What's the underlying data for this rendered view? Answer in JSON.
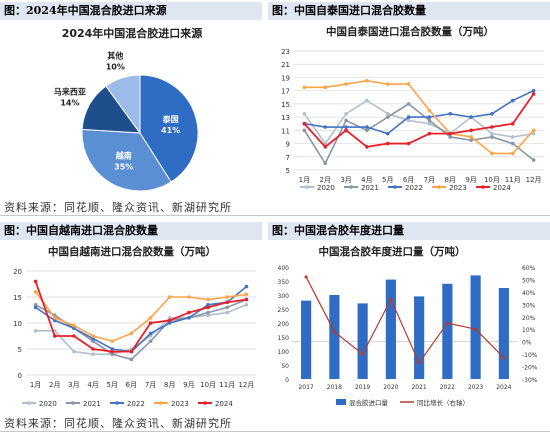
{
  "headers": {
    "h1": "图：2024年中国混合胶进口来源",
    "h2": "图：中国自泰国进口混合胶数量",
    "h3": "图：中国自越南进口混合胶数量",
    "h4": "图：中国混合胶年度进口量"
  },
  "source_text": "资料来源：同花顺、隆众资讯、新湖研究所",
  "colors": {
    "c2020": "#b4bfce",
    "c2021": "#8896a6",
    "c2022": "#4472c4",
    "c2023": "#ffa347",
    "c2024": "#e8202a",
    "bar": "#2f6dc4",
    "growth": "#b53a2e",
    "pie_thai": "#2f6dc4",
    "pie_viet": "#5b8fd4",
    "pie_mal": "#1f4e8c",
    "pie_other": "#9bbbe8"
  },
  "chart_data": [
    {
      "type": "pie",
      "title": "2024年中国混合胶进口来源",
      "slices": [
        {
          "label": "泰国",
          "value": 41,
          "display": "泰国\n41%"
        },
        {
          "label": "越南",
          "value": 35,
          "display": "越南\n35%"
        },
        {
          "label": "马来西亚",
          "value": 14,
          "display": "马来西亚\n14%"
        },
        {
          "label": "其他",
          "value": 10,
          "display": "其他\n10%"
        }
      ]
    },
    {
      "type": "line",
      "title": "中国自泰国进口混合胶数量（万吨）",
      "categories": [
        "1月",
        "2月",
        "3月",
        "4月",
        "5月",
        "6月",
        "7月",
        "8月",
        "9月",
        "10月",
        "11月",
        "12月"
      ],
      "ylim": [
        5,
        23
      ],
      "yticks": [
        5,
        7,
        9,
        11,
        13,
        15,
        17,
        19,
        21,
        23
      ],
      "series": [
        {
          "name": "2020",
          "values": [
            13.5,
            9,
            13.5,
            15.5,
            13.5,
            12.5,
            12,
            10.5,
            13,
            10.5,
            10,
            10.5
          ]
        },
        {
          "name": "2021",
          "values": [
            11,
            6,
            12.5,
            11,
            13,
            15,
            12.5,
            10,
            9.5,
            10,
            9,
            6.5
          ]
        },
        {
          "name": "2022",
          "values": [
            12,
            11.5,
            11.5,
            11.5,
            10.5,
            13,
            13,
            13.5,
            13,
            13.5,
            15.5,
            17
          ]
        },
        {
          "name": "2023",
          "values": [
            17.5,
            17.5,
            18,
            18.5,
            18,
            18,
            14,
            10.5,
            10,
            7.5,
            7.5,
            11
          ]
        },
        {
          "name": "2024",
          "values": [
            12,
            8.5,
            11,
            8.5,
            9,
            9,
            10.5,
            10.5,
            11,
            11.5,
            12,
            16.5
          ]
        }
      ]
    },
    {
      "type": "line",
      "title": "中国自越南进口混合胶数量（万吨）",
      "categories": [
        "1月",
        "2月",
        "3月",
        "4月",
        "5月",
        "6月",
        "7月",
        "8月",
        "9月",
        "10月",
        "11月",
        "12月"
      ],
      "ylim": [
        0,
        20
      ],
      "yticks": [
        0,
        5,
        10,
        15,
        20
      ],
      "series": [
        {
          "name": "2020",
          "values": [
            8.5,
            8.5,
            4.5,
            4,
            4,
            5,
            7.5,
            11,
            11,
            11.5,
            12,
            13.5
          ]
        },
        {
          "name": "2021",
          "values": [
            13.5,
            11.5,
            9,
            6.5,
            4,
            3,
            6.5,
            10.5,
            11,
            12,
            13,
            14.5
          ]
        },
        {
          "name": "2022",
          "values": [
            13,
            10.5,
            9,
            7,
            5,
            4.5,
            8,
            10,
            11,
            13.5,
            14,
            17
          ]
        },
        {
          "name": "2023",
          "values": [
            16,
            11,
            9.5,
            7.5,
            6.5,
            8,
            11,
            15,
            15,
            14.5,
            15,
            15.5
          ]
        },
        {
          "name": "2024",
          "values": [
            18,
            7.5,
            7.5,
            5,
            4.5,
            4.5,
            10,
            10.5,
            12,
            13,
            14,
            14.5
          ]
        }
      ]
    },
    {
      "type": "bar",
      "title": "中国混合胶年度进口量（万吨）",
      "categories": [
        "2017",
        "2018",
        "2019",
        "2020",
        "2021",
        "2022",
        "2023",
        "2024"
      ],
      "series": [
        {
          "name": "混合胶进口量",
          "axis": "left",
          "values": [
            280,
            300,
            270,
            355,
            295,
            340,
            370,
            325
          ]
        },
        {
          "name": "同比增长（右轴）",
          "axis": "right",
          "type": "line",
          "values": [
            52,
            8,
            -10,
            34,
            -17,
            15,
            10,
            -13
          ]
        }
      ],
      "ylim_left": [
        0,
        400
      ],
      "yticks_left": [
        0,
        50,
        100,
        150,
        200,
        250,
        300,
        350,
        400
      ],
      "ylim_right": [
        -30,
        60
      ],
      "yticks_right": [
        "-30%",
        "-20%",
        "-10%",
        "0%",
        "10%",
        "20%",
        "30%",
        "40%",
        "50%",
        "60%"
      ]
    }
  ]
}
